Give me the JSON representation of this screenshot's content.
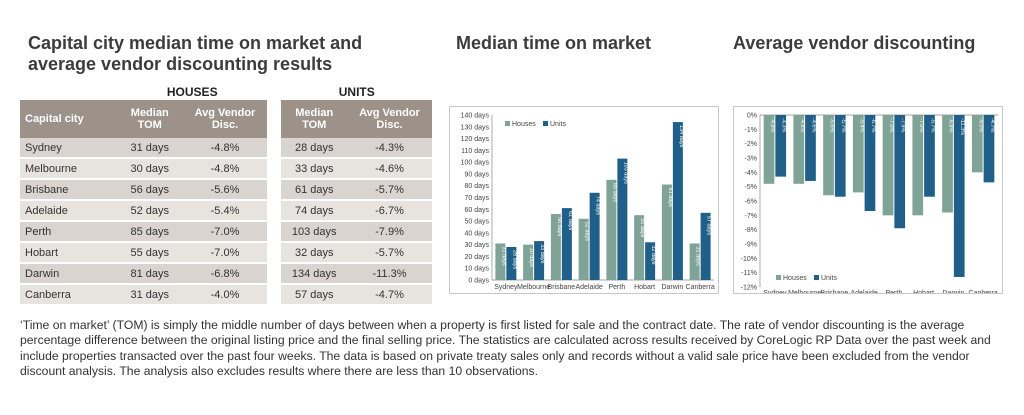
{
  "page": {
    "table_title": "Capital city median time on market and average vendor discounting results",
    "tom_chart_title": "Median time on market",
    "discount_chart_title": "Average vendor discounting",
    "note": "‘Time on market’ (TOM) is simply the middle number of days between when a property is first listed for sale and the contract date.  The rate of vendor discounting is the average percentage difference between the original listing price and the final selling price.  The statistics are calculated across results received by CoreLogic RP Data over the past week and include properties transacted over the past four weeks. The data is based on private treaty sales only and records without a valid sale price have been excluded from the vendor discount analysis. The analysis also excludes results where there are less than 10 observations."
  },
  "table": {
    "group_houses": "HOUSES",
    "group_units": "UNITS",
    "col_city": "Capital city",
    "col_tom": "Median TOM",
    "col_disc": "Avg Vendor Disc.",
    "rows": [
      {
        "city": "Sydney",
        "h_tom": "31 days",
        "h_disc": "-4.8%",
        "u_tom": "28 days",
        "u_disc": "-4.3%"
      },
      {
        "city": "Melbourne",
        "h_tom": "30 days",
        "h_disc": "-4.8%",
        "u_tom": "33 days",
        "u_disc": "-4.6%"
      },
      {
        "city": "Brisbane",
        "h_tom": "56 days",
        "h_disc": "-5.6%",
        "u_tom": "61 days",
        "u_disc": "-5.7%"
      },
      {
        "city": "Adelaide",
        "h_tom": "52 days",
        "h_disc": "-5.4%",
        "u_tom": "74 days",
        "u_disc": "-6.7%"
      },
      {
        "city": "Perth",
        "h_tom": "85 days",
        "h_disc": "-7.0%",
        "u_tom": "103 days",
        "u_disc": "-7.9%"
      },
      {
        "city": "Hobart",
        "h_tom": "55 days",
        "h_disc": "-7.0%",
        "u_tom": "32 days",
        "u_disc": "-5.7%"
      },
      {
        "city": "Darwin",
        "h_tom": "81 days",
        "h_disc": "-6.8%",
        "u_tom": "134 days",
        "u_disc": "-11.3%"
      },
      {
        "city": "Canberra",
        "h_tom": "31 days",
        "h_disc": "-4.0%",
        "u_tom": "57 days",
        "u_disc": "-4.7%"
      }
    ]
  },
  "chart_data": [
    {
      "type": "bar",
      "title": "Median time on market",
      "categories": [
        "Sydney",
        "Melbourne",
        "Brisbane",
        "Adelaide",
        "Perth",
        "Hobart",
        "Darwin",
        "Canberra"
      ],
      "series": [
        {
          "name": "Houses",
          "values": [
            31,
            30,
            56,
            52,
            85,
            55,
            81,
            31
          ],
          "color": "#7fa397"
        },
        {
          "name": "Units",
          "values": [
            28,
            33,
            61,
            74,
            103,
            32,
            134,
            57
          ],
          "color": "#1f5f88"
        }
      ],
      "value_labels": {
        "Houses": [
          "31 days",
          "30 days",
          "56 days",
          "52 days",
          "85 days",
          "55 days",
          "81 days",
          "31 days"
        ],
        "Units": [
          "28 days",
          "33 days",
          "61 days",
          "74 days",
          "103 days",
          "32 days",
          "134 days",
          "57 days"
        ]
      },
      "yticks": [
        "0 days",
        "10 days",
        "20 days",
        "30 days",
        "40 days",
        "50 days",
        "60 days",
        "70 days",
        "80 days",
        "90 days",
        "100 days",
        "110 days",
        "120 days",
        "130 days",
        "140 days"
      ],
      "ylim": [
        0,
        140
      ],
      "legend": "top-left",
      "grid": false
    },
    {
      "type": "bar",
      "title": "Average vendor discounting",
      "categories": [
        "Sydney",
        "Melbourne",
        "Brisbane",
        "Adelaide",
        "Perth",
        "Hobart",
        "Darwin",
        "Canberra"
      ],
      "series": [
        {
          "name": "Houses",
          "values": [
            -4.8,
            -4.8,
            -5.6,
            -5.4,
            -7.0,
            -7.0,
            -6.8,
            -4.0
          ],
          "color": "#7fa397"
        },
        {
          "name": "Units",
          "values": [
            -4.3,
            -4.6,
            -5.7,
            -6.7,
            -7.9,
            -5.7,
            -11.3,
            -4.7
          ],
          "color": "#1f5f88"
        }
      ],
      "value_labels": {
        "Houses": [
          "-4.8%",
          "-4.8%",
          "-5.6%",
          "-5.4%",
          "-7.0%",
          "-7.0%",
          "-6.8%",
          "-4.0%"
        ],
        "Units": [
          "-4.3%",
          "-4.6%",
          "-5.7%",
          "-6.7%",
          "-7.9%",
          "-5.7%",
          "-11.3%",
          "-4.7%"
        ]
      },
      "yticks": [
        "0%",
        "-1%",
        "-2%",
        "-3%",
        "-4%",
        "-5%",
        "-6%",
        "-7%",
        "-8%",
        "-9%",
        "-10%",
        "-11%",
        "-12%"
      ],
      "ylim": [
        -12,
        0
      ],
      "legend": "bottom-left",
      "grid": false
    }
  ]
}
